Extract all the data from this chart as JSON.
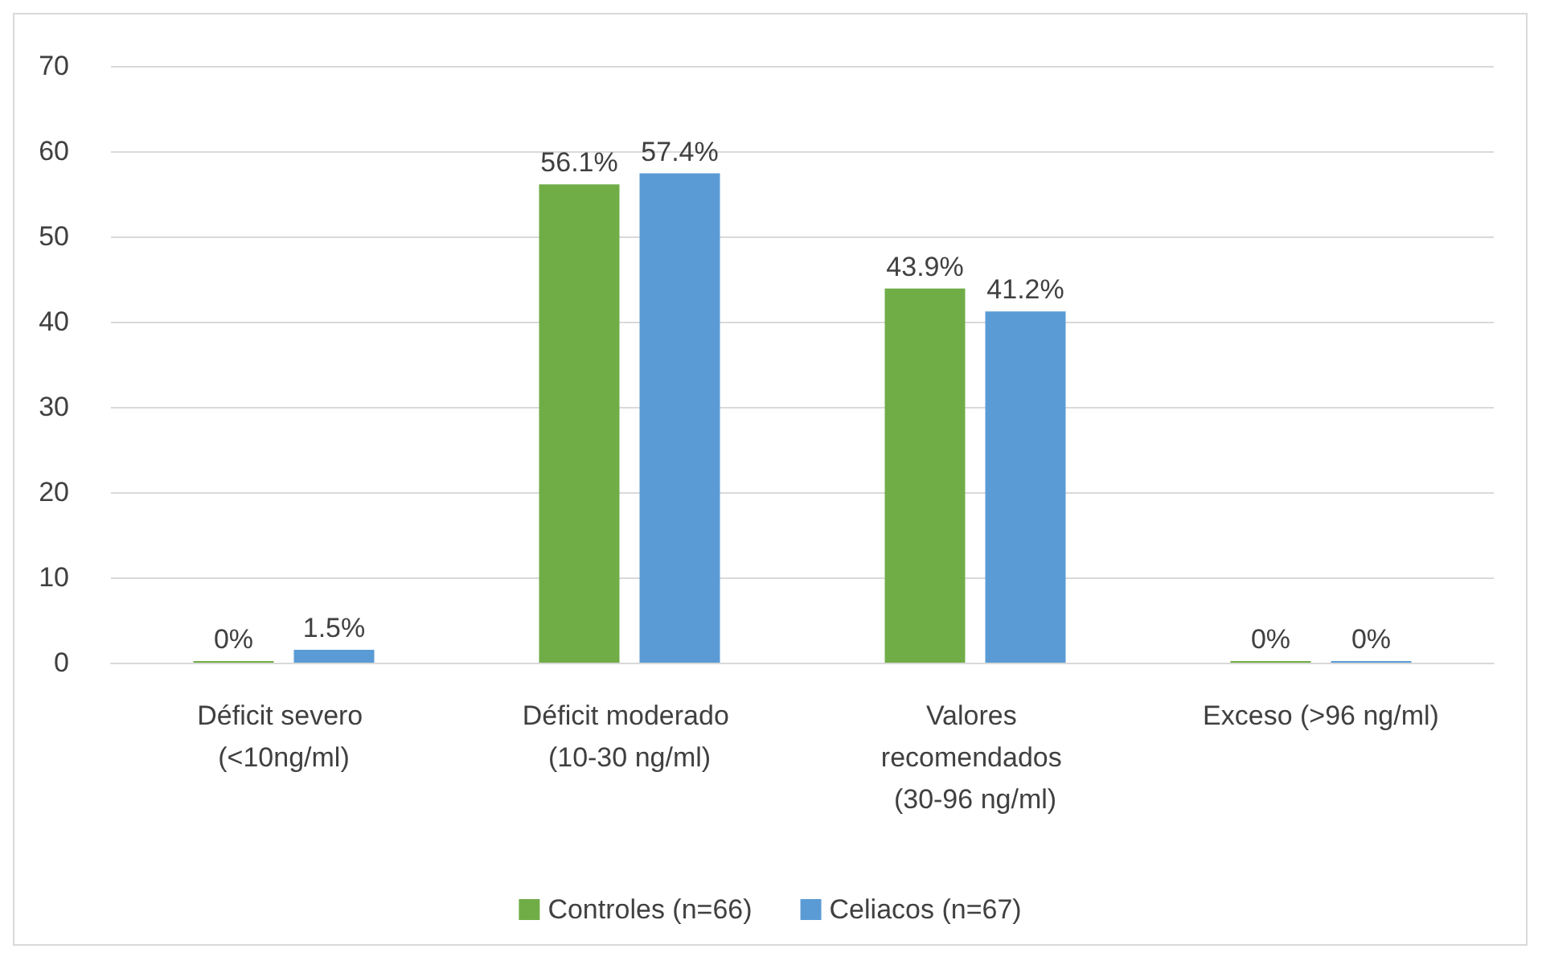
{
  "chart_data": {
    "type": "bar",
    "categories": [
      "Déficit severo (<10ng/ml)",
      "Déficit moderado (10-30 ng/ml)",
      "Valores recomendados (30-96 ng/ml)",
      "Exceso (>96 ng/ml)"
    ],
    "series": [
      {
        "name": "Controles (n=66)",
        "color": "#70ad47",
        "values": [
          0,
          56.1,
          43.9,
          0
        ],
        "value_labels": [
          "0%",
          "56.1%",
          "43.9%",
          "0%"
        ]
      },
      {
        "name": "Celiacos (n=67)",
        "color": "#5b9bd5",
        "values": [
          1.5,
          57.4,
          41.2,
          0
        ],
        "value_labels": [
          "1.5%",
          "57.4%",
          "41.2%",
          "0%"
        ]
      }
    ],
    "ylim": [
      0,
      70
    ],
    "yticks": [
      0,
      10,
      20,
      30,
      40,
      50,
      60,
      70
    ],
    "grid": "y",
    "legend": "bottom"
  }
}
